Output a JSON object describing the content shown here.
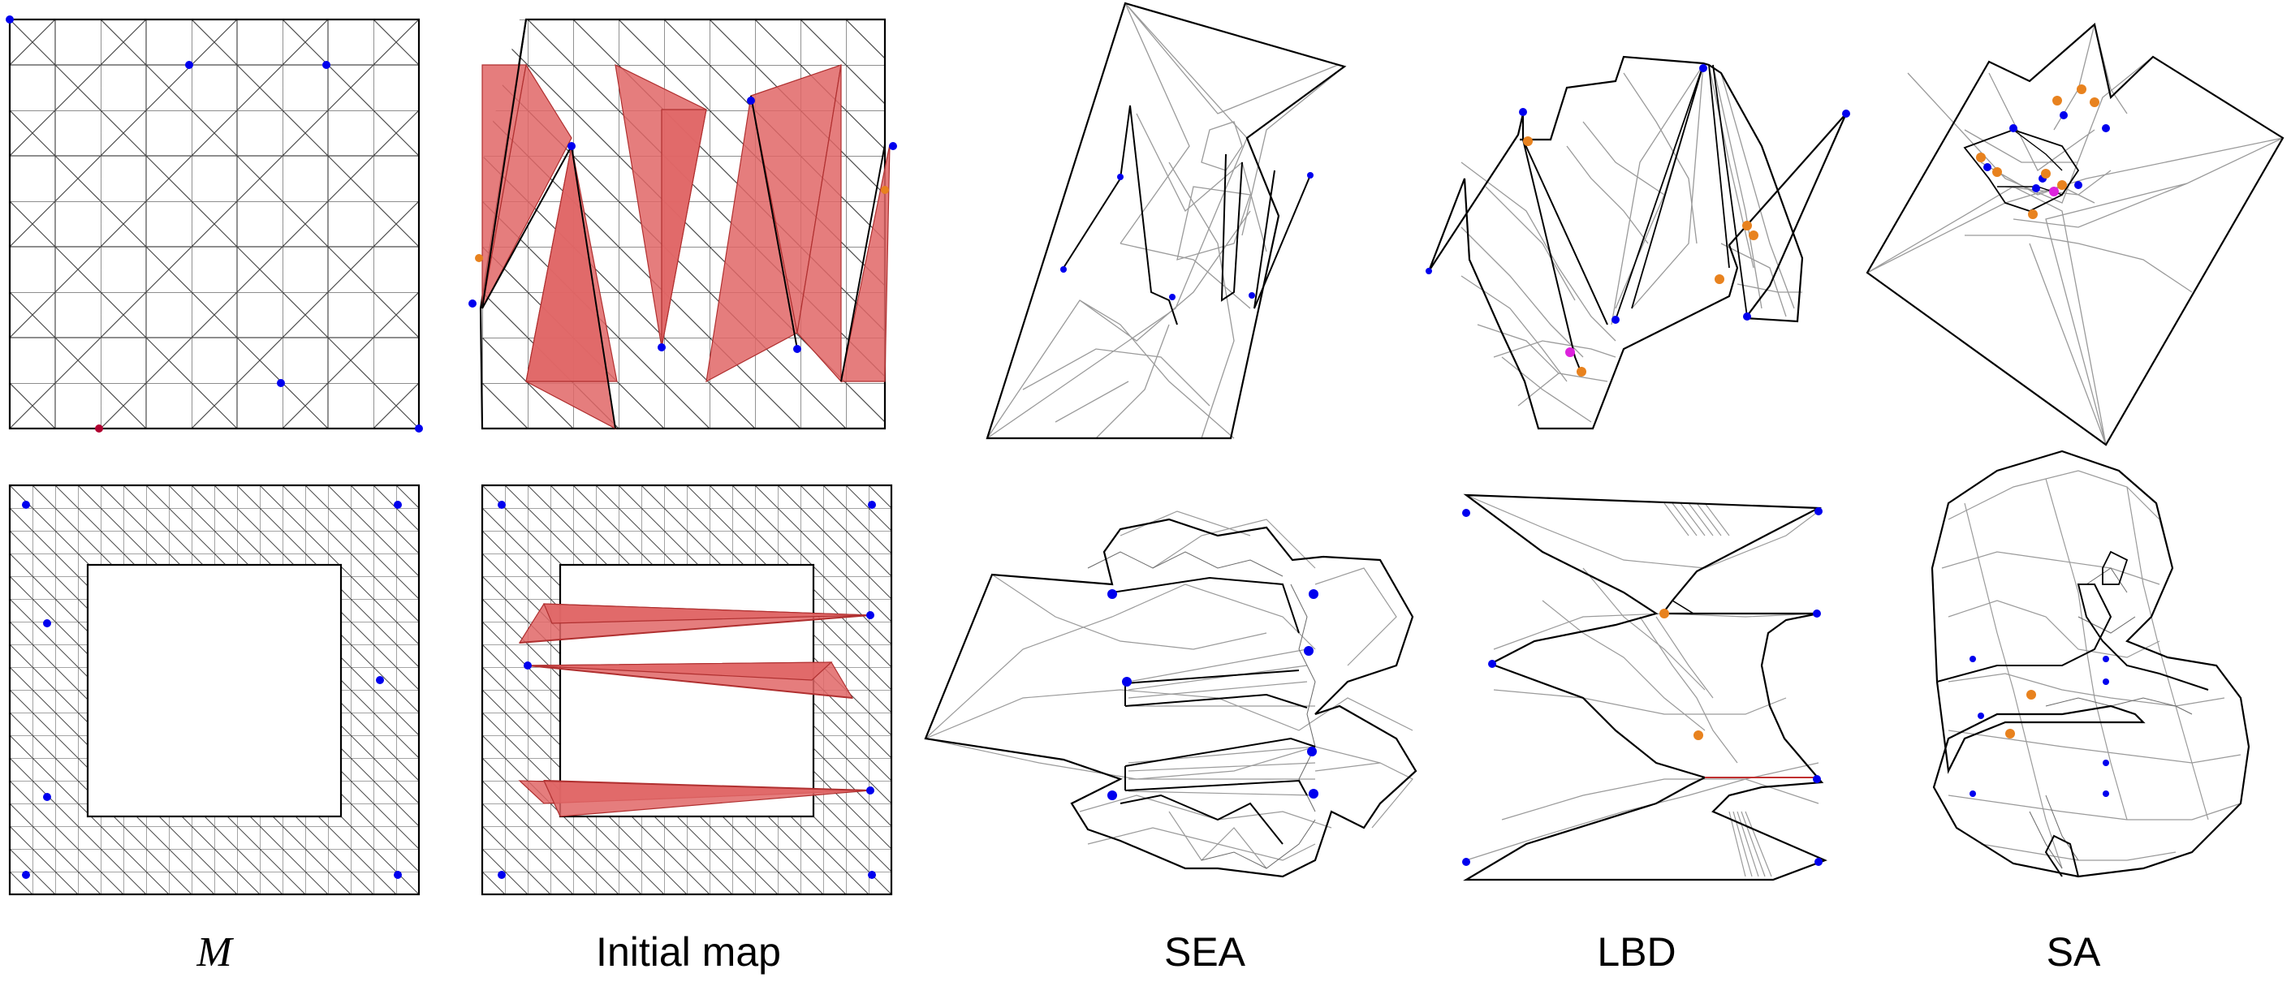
{
  "captions": {
    "m": "M",
    "initial": "Initial map",
    "sea": "SEA",
    "lbd": "LBD",
    "sa": "SA"
  },
  "colors": {
    "edge": "#000000",
    "light_edge": "#9a9a9a",
    "flipped_fill": "#e06666",
    "flipped_stroke": "#b03030",
    "handle": "#0000ee",
    "orange": "#e8821e",
    "magenta": "#dd22dd"
  },
  "panels": [
    "mesh-square",
    "initial-map-square",
    "sea-square",
    "lbd-square",
    "sa-square",
    "mesh-annulus",
    "initial-map-annulus",
    "sea-annulus",
    "lbd-annulus",
    "sa-annulus"
  ]
}
